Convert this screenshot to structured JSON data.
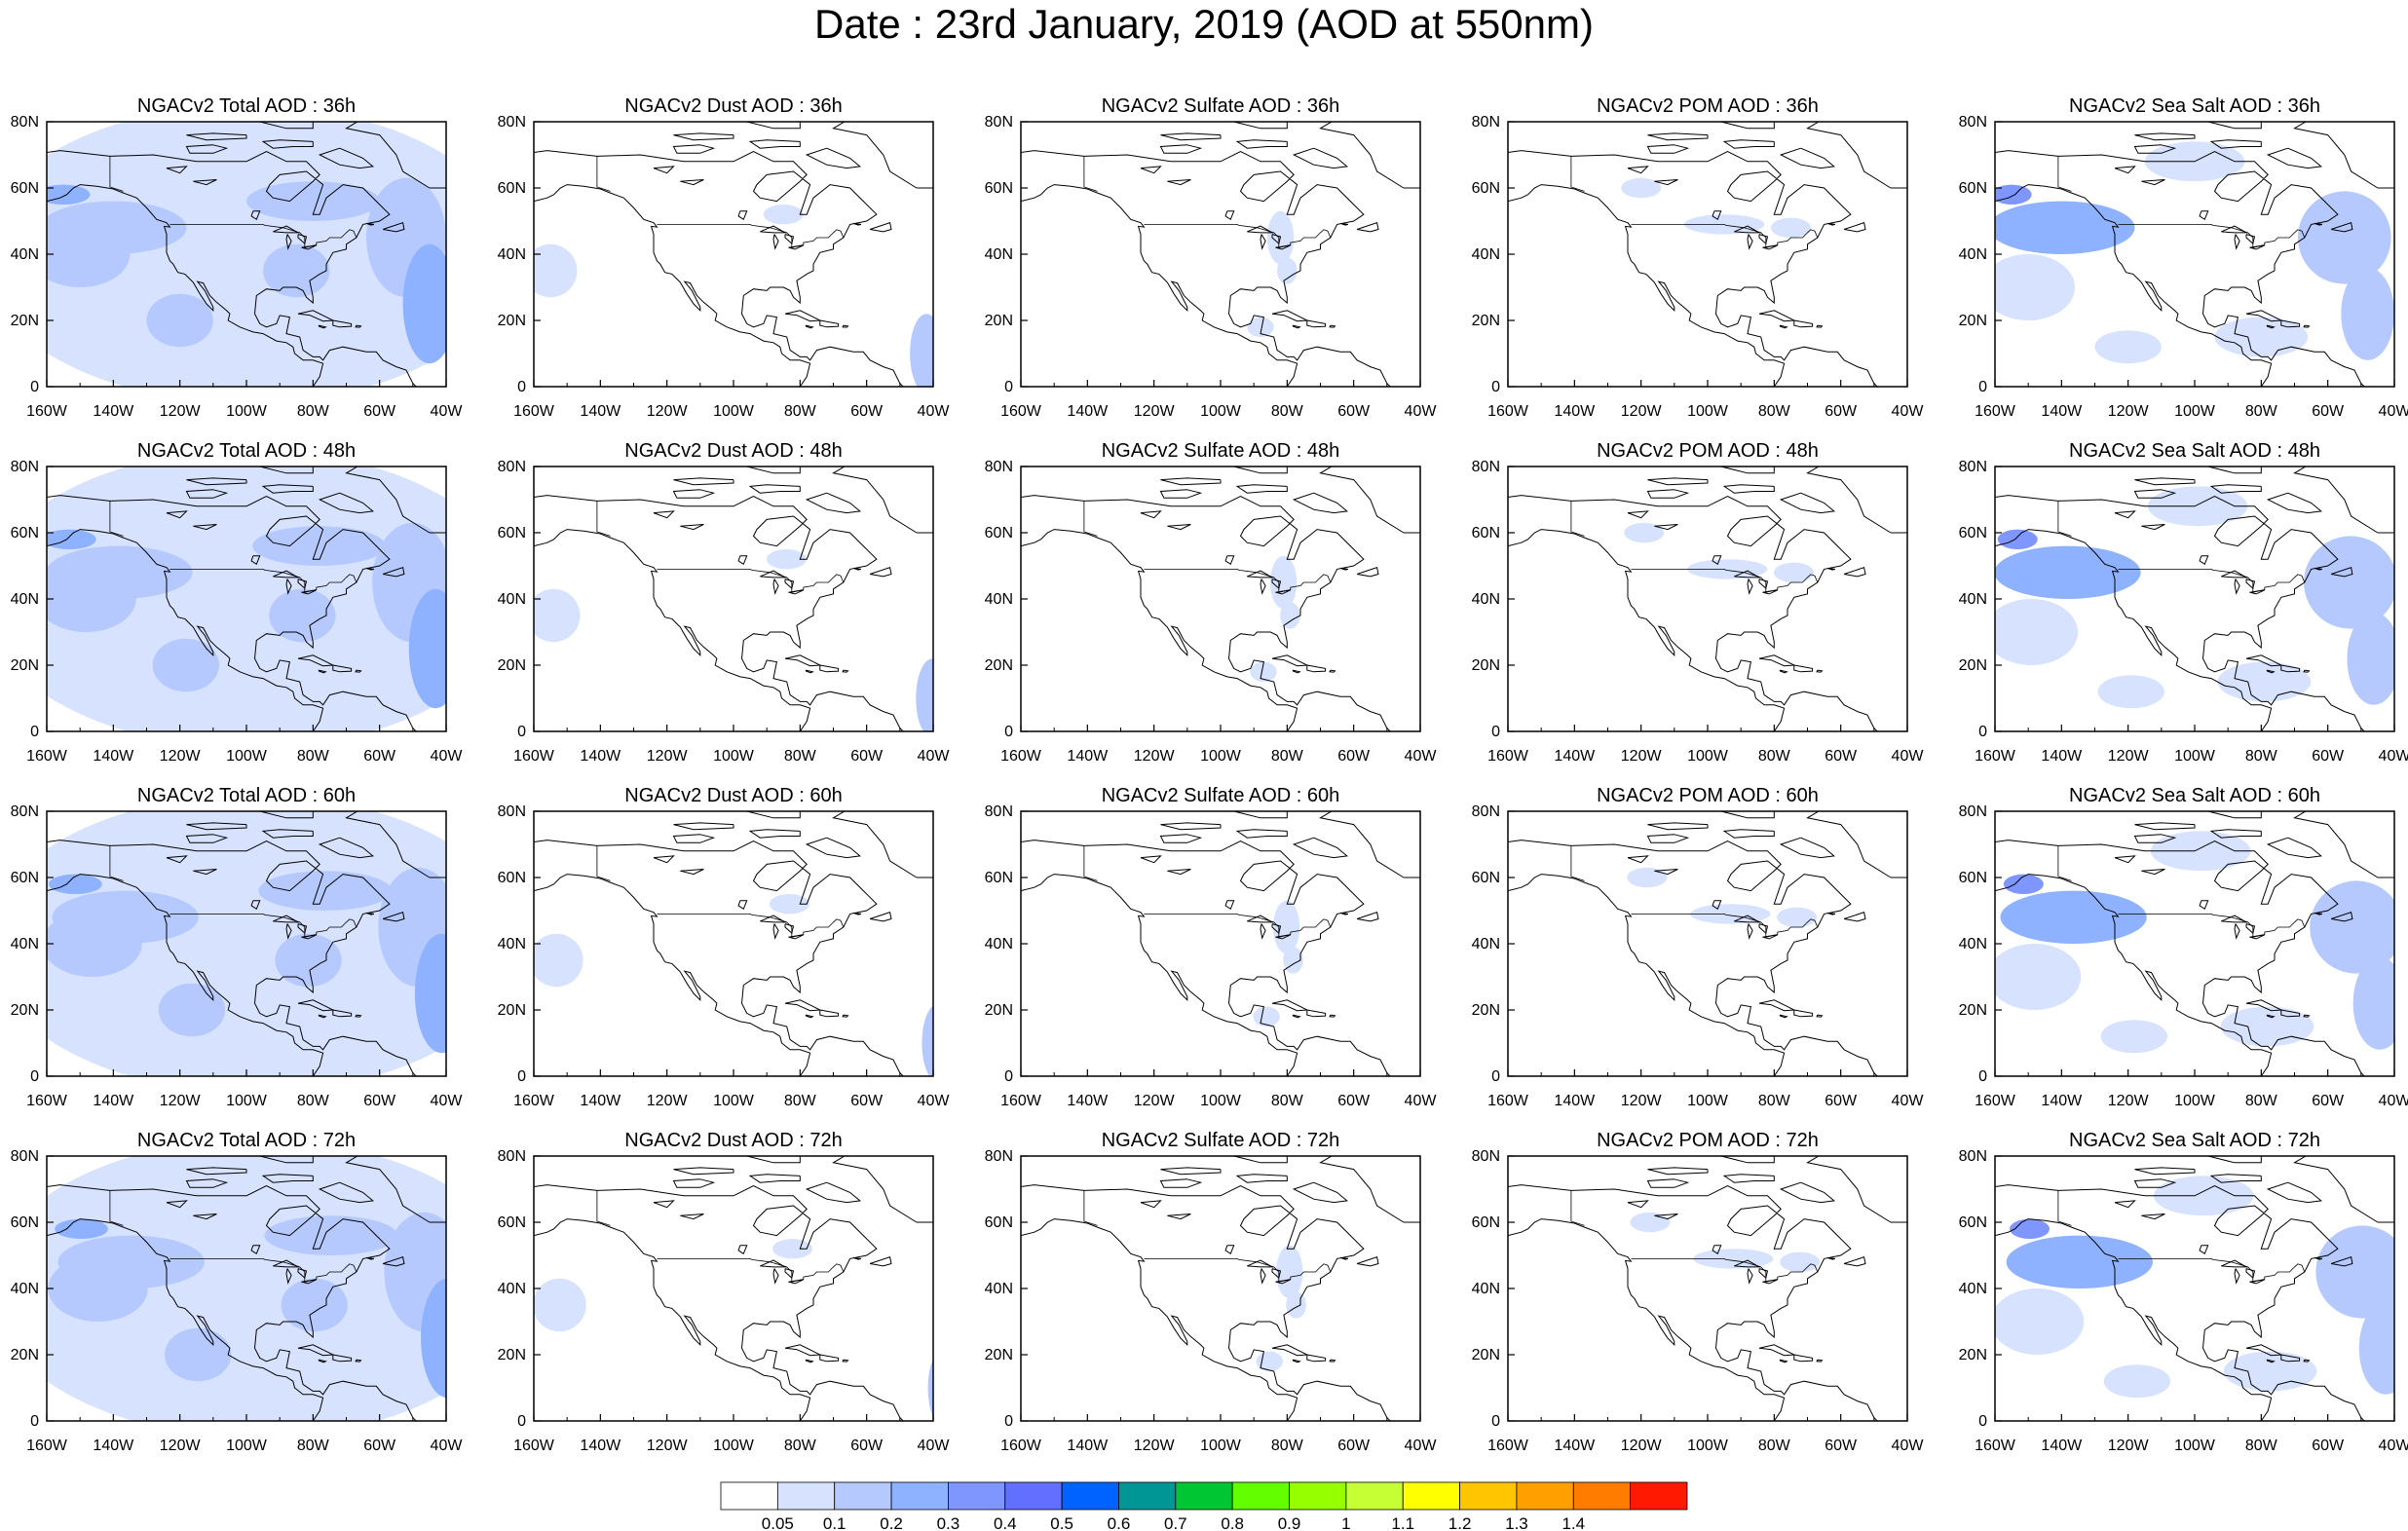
{
  "page_title": "Date : 23rd January, 2019 (AOD at 550nm)",
  "panels": [
    {
      "title": "NGACv2 Total AOD : 36h",
      "species": "total",
      "hour": 36
    },
    {
      "title": "NGACv2 Dust AOD : 36h",
      "species": "dust",
      "hour": 36
    },
    {
      "title": "NGACv2 Sulfate AOD : 36h",
      "species": "sulfate",
      "hour": 36
    },
    {
      "title": "NGACv2 POM AOD : 36h",
      "species": "pom",
      "hour": 36
    },
    {
      "title": "NGACv2 Sea Salt AOD : 36h",
      "species": "seasalt",
      "hour": 36
    },
    {
      "title": "NGACv2 Total AOD : 48h",
      "species": "total",
      "hour": 48
    },
    {
      "title": "NGACv2 Dust AOD : 48h",
      "species": "dust",
      "hour": 48
    },
    {
      "title": "NGACv2 Sulfate AOD : 48h",
      "species": "sulfate",
      "hour": 48
    },
    {
      "title": "NGACv2 POM AOD : 48h",
      "species": "pom",
      "hour": 48
    },
    {
      "title": "NGACv2 Sea Salt AOD : 48h",
      "species": "seasalt",
      "hour": 48
    },
    {
      "title": "NGACv2 Total AOD : 60h",
      "species": "total",
      "hour": 60
    },
    {
      "title": "NGACv2 Dust AOD : 60h",
      "species": "dust",
      "hour": 60
    },
    {
      "title": "NGACv2 Sulfate AOD : 60h",
      "species": "sulfate",
      "hour": 60
    },
    {
      "title": "NGACv2 POM AOD : 60h",
      "species": "pom",
      "hour": 60
    },
    {
      "title": "NGACv2 Sea Salt AOD : 60h",
      "species": "seasalt",
      "hour": 60
    },
    {
      "title": "NGACv2 Total AOD : 72h",
      "species": "total",
      "hour": 72
    },
    {
      "title": "NGACv2 Dust AOD : 72h",
      "species": "dust",
      "hour": 72
    },
    {
      "title": "NGACv2 Sulfate AOD : 72h",
      "species": "sulfate",
      "hour": 72
    },
    {
      "title": "NGACv2 POM AOD : 72h",
      "species": "pom",
      "hour": 72
    },
    {
      "title": "NGACv2 Sea Salt  AOD : 72h",
      "species": "seasalt",
      "hour": 72
    }
  ],
  "map_extent": {
    "lon": [
      -160,
      -40
    ],
    "lat": [
      0,
      80
    ]
  },
  "lon_ticks": [
    "160W",
    "140W",
    "120W",
    "100W",
    "80W",
    "60W",
    "40W"
  ],
  "lat_ticks": [
    "80N",
    "60N",
    "40N",
    "20N",
    "0"
  ],
  "colorbar": {
    "colors": [
      "#ffffff",
      "#d6e2ff",
      "#b5c9ff",
      "#8eb2ff",
      "#7f96ff",
      "#6370ff",
      "#0063ff",
      "#009696",
      "#00c633",
      "#63ff00",
      "#96ff00",
      "#c6ff33",
      "#ffff00",
      "#ffc600",
      "#ffa000",
      "#ff7c00",
      "#ff1900"
    ],
    "labels": [
      "0.05",
      "0.1",
      "0.2",
      "0.3",
      "0.4",
      "0.5",
      "0.6",
      "0.7",
      "0.8",
      "0.9",
      "1",
      "1.1",
      "1.2",
      "1.3",
      "1.4"
    ]
  },
  "chart_data": {
    "type": "heatmap",
    "title": "Date : 23rd January, 2019 (AOD at 550nm)",
    "x_range": [
      -160,
      -40
    ],
    "y_range": [
      0,
      80
    ],
    "color_levels": [
      0.05,
      0.1,
      0.2,
      0.3,
      0.4,
      0.5,
      0.6,
      0.7,
      0.8,
      0.9,
      1,
      1.1,
      1.2,
      1.3,
      1.4
    ],
    "level_colors": [
      "#ffffff",
      "#d6e2ff",
      "#b5c9ff",
      "#8eb2ff",
      "#7f96ff",
      "#6370ff",
      "#0063ff",
      "#009696",
      "#00c633",
      "#63ff00",
      "#96ff00",
      "#c6ff33",
      "#ffff00",
      "#ffc600",
      "#ffa000",
      "#ff7c00",
      "#ff1900"
    ],
    "species": [
      "Total",
      "Dust",
      "Sulfate",
      "POM",
      "Sea Salt"
    ],
    "forecast_hours": [
      36,
      48,
      60,
      72
    ]
  }
}
